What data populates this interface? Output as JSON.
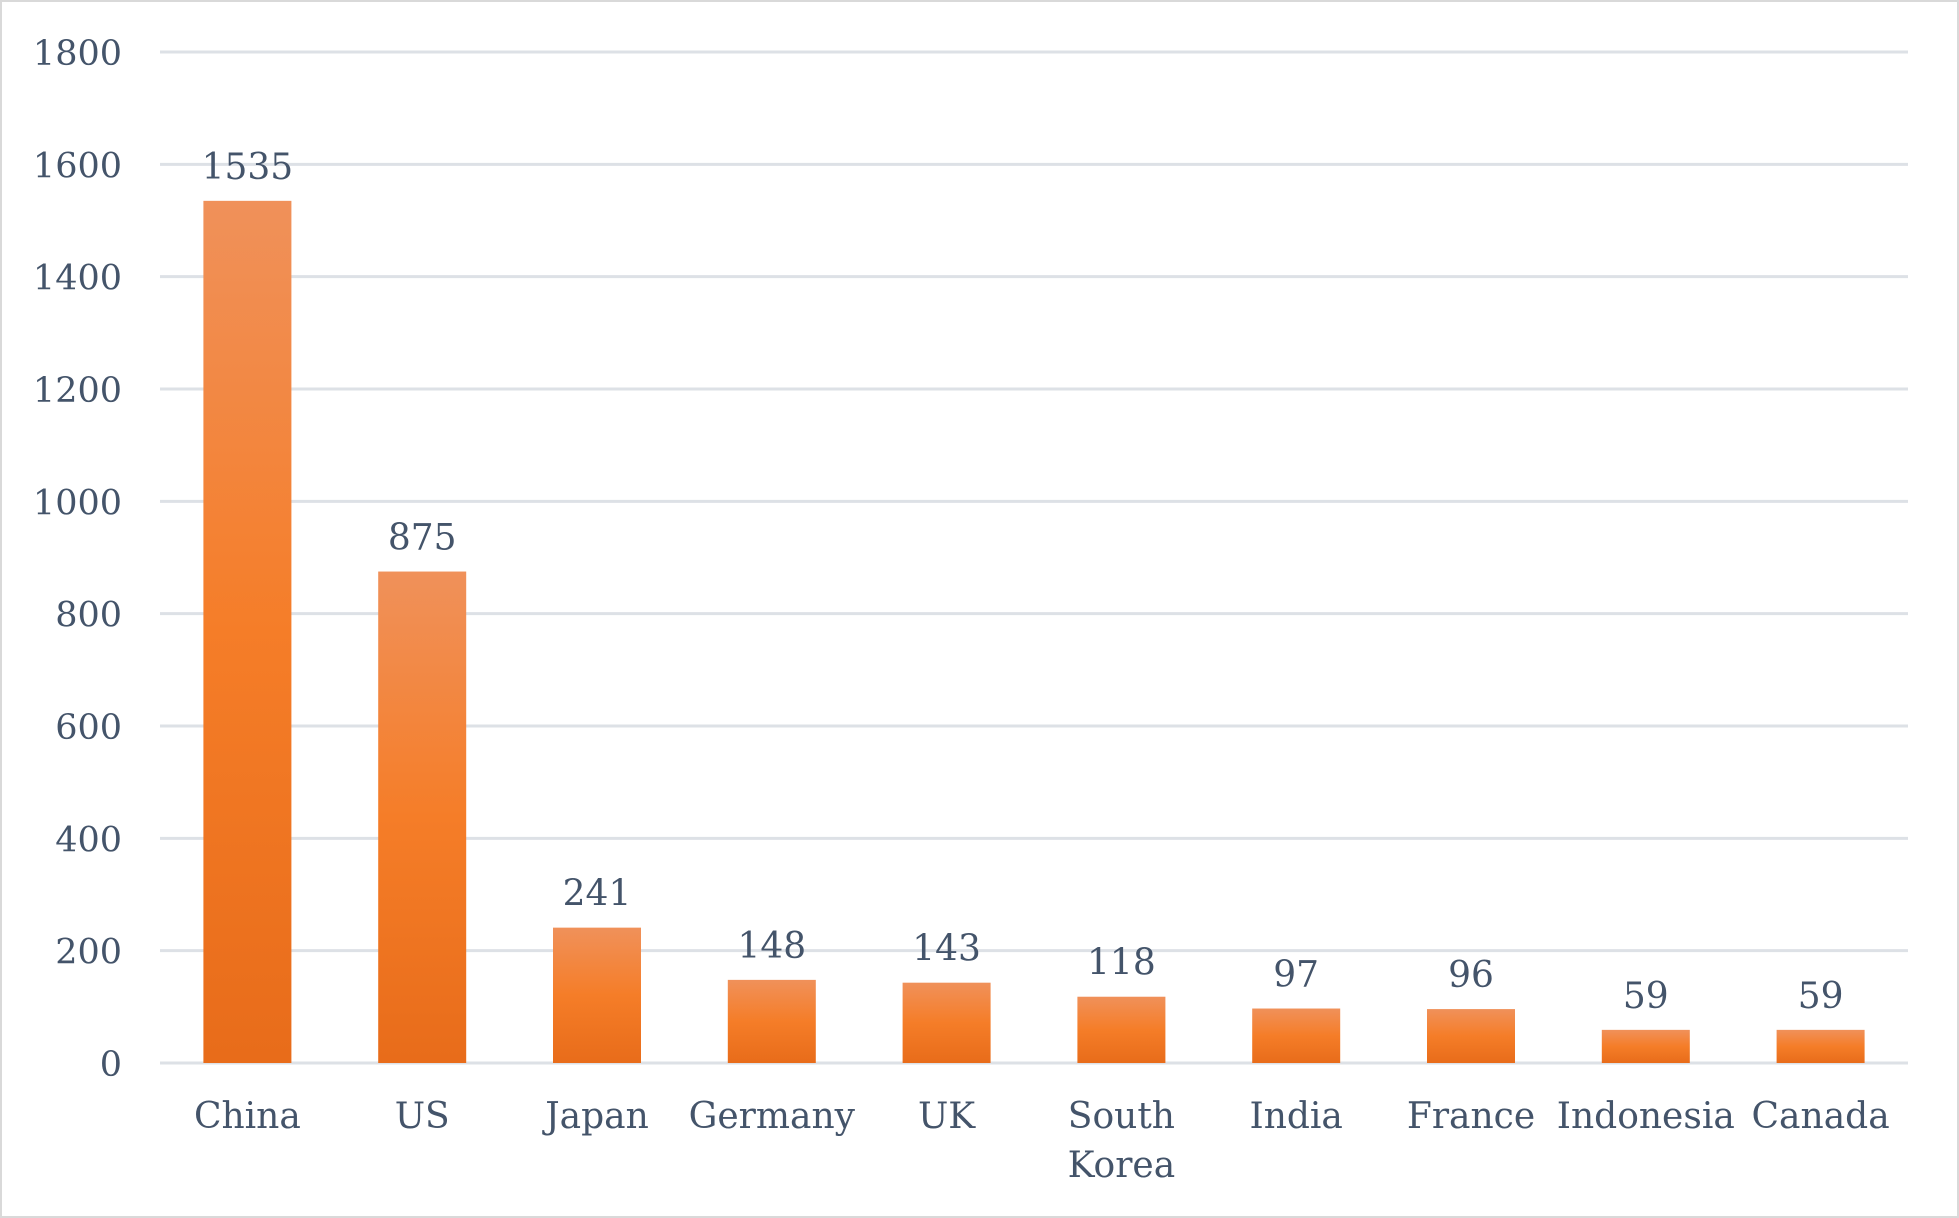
{
  "chart_data": {
    "type": "bar",
    "title": "",
    "xlabel": "",
    "ylabel": "",
    "categories": [
      "China",
      "US",
      "Japan",
      "Germany",
      "UK",
      "South Korea",
      "India",
      "France",
      "Indonesia",
      "Canada"
    ],
    "category_label_lines": [
      [
        "China"
      ],
      [
        "US"
      ],
      [
        "Japan"
      ],
      [
        "Germany"
      ],
      [
        "UK"
      ],
      [
        "South",
        "Korea"
      ],
      [
        "India"
      ],
      [
        "France"
      ],
      [
        "Indonesia"
      ],
      [
        "Canada"
      ]
    ],
    "values": [
      1535,
      875,
      241,
      148,
      143,
      118,
      97,
      96,
      59,
      59
    ],
    "ylim": [
      0,
      1800
    ],
    "yticks": [
      0,
      200,
      400,
      600,
      800,
      1000,
      1200,
      1400,
      1600,
      1800
    ],
    "grid": true,
    "legend": "none",
    "colors": {
      "bar_top": "#f0915a",
      "bar_mid": "#f57d28",
      "bar_bottom": "#e86c1a",
      "text": "#44546a",
      "grid": "#dde1e6",
      "frame": "#d9d9d9"
    }
  }
}
